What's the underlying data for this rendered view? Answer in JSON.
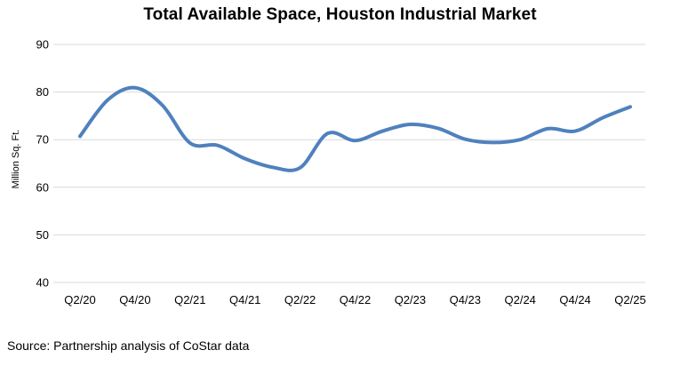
{
  "chart_data": {
    "type": "line",
    "title": "Total Available Space, Houston Industrial Market",
    "xlabel": "",
    "ylabel": "Million Sq. Ft.",
    "ylim": [
      40,
      90
    ],
    "yticks": [
      40,
      50,
      60,
      70,
      80,
      90
    ],
    "grid": true,
    "legend": "none",
    "categories": [
      "Q2/20",
      "Q3/20",
      "Q4/20",
      "Q1/21",
      "Q2/21",
      "Q3/21",
      "Q4/21",
      "Q1/22",
      "Q2/22",
      "Q3/22",
      "Q4/22",
      "Q1/23",
      "Q2/23",
      "Q3/23",
      "Q4/23",
      "Q1/24",
      "Q2/24",
      "Q3/24",
      "Q4/24",
      "Q1/25",
      "Q2/25"
    ],
    "xtick_labels": [
      "Q2/20",
      "Q4/20",
      "Q2/21",
      "Q4/21",
      "Q2/22",
      "Q4/22",
      "Q2/23",
      "Q4/23",
      "Q2/24",
      "Q4/24",
      "Q2/25"
    ],
    "series": [
      {
        "name": "",
        "color": "#4f81bd",
        "values": [
          70.7,
          78.3,
          80.9,
          77.2,
          69.3,
          68.8,
          66.0,
          64.2,
          64.1,
          71.3,
          69.8,
          71.8,
          73.2,
          72.4,
          70.1,
          69.4,
          70.0,
          72.3,
          71.8,
          74.6,
          76.9
        ]
      }
    ]
  },
  "source": "Source: Partnership analysis of CoStar data"
}
